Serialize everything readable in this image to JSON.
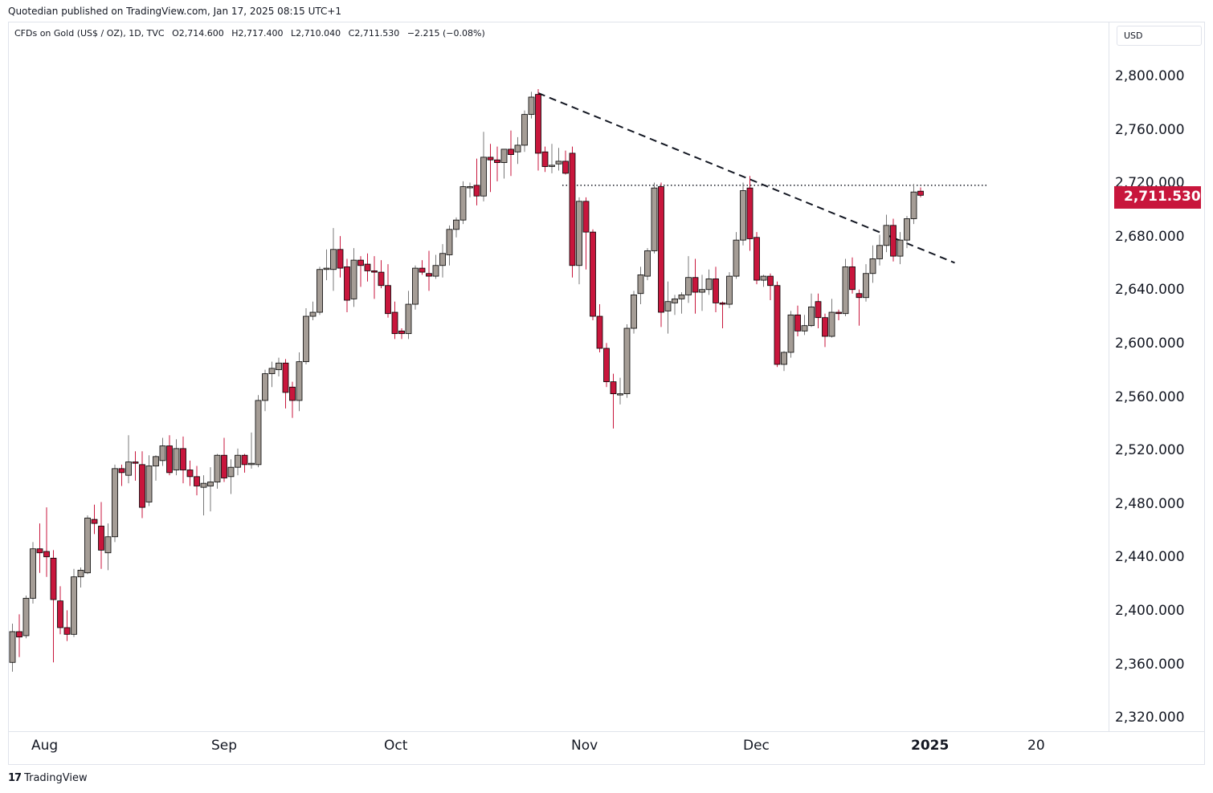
{
  "header": {
    "published": "Quotedian published on TradingView.com, Jan 17, 2025 08:15 UTC+1"
  },
  "legend": {
    "symbol": "CFDs on Gold (US$ / OZ), 1D, TVC",
    "open": "O2,714.600",
    "high": "H2,717.400",
    "low": "L2,710.040",
    "close": "C2,711.530",
    "change": "−2.215 (−0.08%)"
  },
  "currency": "USD",
  "last_price_label": "2,711.530",
  "price_axis": [
    "2,800.000",
    "2,760.000",
    "2,720.000",
    "2,680.000",
    "2,640.000",
    "2,600.000",
    "2,560.000",
    "2,520.000",
    "2,480.000",
    "2,440.000",
    "2,400.000",
    "2,360.000",
    "2,320.000"
  ],
  "time_axis": [
    {
      "label": "Aug",
      "bold": false
    },
    {
      "label": "Sep",
      "bold": false
    },
    {
      "label": "Oct",
      "bold": false
    },
    {
      "label": "Nov",
      "bold": false
    },
    {
      "label": "Dec",
      "bold": false
    },
    {
      "label": "2025",
      "bold": true
    },
    {
      "label": "20",
      "bold": false
    }
  ],
  "footer": {
    "brand": "TradingView"
  },
  "colors": {
    "up": "#a59d96",
    "down": "#c8163c",
    "outline": "#000000",
    "wick_up": "#787878",
    "wick_down": "#c8163c",
    "badge": "#c8163c"
  },
  "chart_data": {
    "type": "candlestick",
    "ylim": [
      2300,
      2830
    ],
    "grid": false,
    "y_tick_values": [
      2800,
      2760,
      2720,
      2680,
      2640,
      2600,
      2560,
      2520,
      2480,
      2440,
      2400,
      2360,
      2320
    ],
    "candles": [
      {
        "o": 2362,
        "h": 2391,
        "l": 2355,
        "c": 2385
      },
      {
        "o": 2385,
        "h": 2398,
        "l": 2366,
        "c": 2381
      },
      {
        "o": 2382,
        "h": 2412,
        "l": 2380,
        "c": 2410
      },
      {
        "o": 2410,
        "h": 2452,
        "l": 2406,
        "c": 2447
      },
      {
        "o": 2447,
        "h": 2466,
        "l": 2429,
        "c": 2444
      },
      {
        "o": 2445,
        "h": 2478,
        "l": 2426,
        "c": 2441
      },
      {
        "o": 2440,
        "h": 2446,
        "l": 2362,
        "c": 2409
      },
      {
        "o": 2408,
        "h": 2419,
        "l": 2383,
        "c": 2388
      },
      {
        "o": 2388,
        "h": 2401,
        "l": 2378,
        "c": 2383
      },
      {
        "o": 2383,
        "h": 2432,
        "l": 2381,
        "c": 2426
      },
      {
        "o": 2426,
        "h": 2433,
        "l": 2418,
        "c": 2431
      },
      {
        "o": 2429,
        "h": 2472,
        "l": 2428,
        "c": 2470
      },
      {
        "o": 2469,
        "h": 2480,
        "l": 2458,
        "c": 2466
      },
      {
        "o": 2464,
        "h": 2482,
        "l": 2432,
        "c": 2446
      },
      {
        "o": 2444,
        "h": 2466,
        "l": 2431,
        "c": 2456
      },
      {
        "o": 2456,
        "h": 2510,
        "l": 2452,
        "c": 2507
      },
      {
        "o": 2507,
        "h": 2510,
        "l": 2494,
        "c": 2504
      },
      {
        "o": 2502,
        "h": 2532,
        "l": 2496,
        "c": 2512
      },
      {
        "o": 2512,
        "h": 2520,
        "l": 2498,
        "c": 2511
      },
      {
        "o": 2510,
        "h": 2520,
        "l": 2470,
        "c": 2478
      },
      {
        "o": 2482,
        "h": 2517,
        "l": 2479,
        "c": 2509
      },
      {
        "o": 2509,
        "h": 2517,
        "l": 2498,
        "c": 2516
      },
      {
        "o": 2513,
        "h": 2530,
        "l": 2509,
        "c": 2524
      },
      {
        "o": 2524,
        "h": 2532,
        "l": 2502,
        "c": 2504
      },
      {
        "o": 2506,
        "h": 2529,
        "l": 2502,
        "c": 2522
      },
      {
        "o": 2522,
        "h": 2531,
        "l": 2496,
        "c": 2506
      },
      {
        "o": 2506,
        "h": 2513,
        "l": 2494,
        "c": 2501
      },
      {
        "o": 2501,
        "h": 2509,
        "l": 2487,
        "c": 2494
      },
      {
        "o": 2493,
        "h": 2502,
        "l": 2472,
        "c": 2496
      },
      {
        "o": 2494,
        "h": 2508,
        "l": 2475,
        "c": 2497
      },
      {
        "o": 2497,
        "h": 2518,
        "l": 2492,
        "c": 2517
      },
      {
        "o": 2517,
        "h": 2530,
        "l": 2497,
        "c": 2500
      },
      {
        "o": 2501,
        "h": 2514,
        "l": 2488,
        "c": 2508
      },
      {
        "o": 2508,
        "h": 2522,
        "l": 2502,
        "c": 2517
      },
      {
        "o": 2517,
        "h": 2518,
        "l": 2504,
        "c": 2510
      },
      {
        "o": 2510,
        "h": 2534,
        "l": 2507,
        "c": 2511
      },
      {
        "o": 2510,
        "h": 2562,
        "l": 2508,
        "c": 2558
      },
      {
        "o": 2558,
        "h": 2581,
        "l": 2550,
        "c": 2578
      },
      {
        "o": 2578,
        "h": 2587,
        "l": 2568,
        "c": 2582
      },
      {
        "o": 2581,
        "h": 2590,
        "l": 2576,
        "c": 2586
      },
      {
        "o": 2586,
        "h": 2589,
        "l": 2552,
        "c": 2564
      },
      {
        "o": 2568,
        "h": 2572,
        "l": 2545,
        "c": 2558
      },
      {
        "o": 2558,
        "h": 2594,
        "l": 2550,
        "c": 2587
      },
      {
        "o": 2587,
        "h": 2627,
        "l": 2585,
        "c": 2621
      },
      {
        "o": 2621,
        "h": 2632,
        "l": 2618,
        "c": 2624
      },
      {
        "o": 2624,
        "h": 2658,
        "l": 2622,
        "c": 2656
      },
      {
        "o": 2656,
        "h": 2671,
        "l": 2648,
        "c": 2657
      },
      {
        "o": 2656,
        "h": 2687,
        "l": 2640,
        "c": 2671
      },
      {
        "o": 2671,
        "h": 2681,
        "l": 2650,
        "c": 2657
      },
      {
        "o": 2658,
        "h": 2664,
        "l": 2624,
        "c": 2633
      },
      {
        "o": 2634,
        "h": 2672,
        "l": 2628,
        "c": 2663
      },
      {
        "o": 2663,
        "h": 2666,
        "l": 2643,
        "c": 2659
      },
      {
        "o": 2660,
        "h": 2668,
        "l": 2647,
        "c": 2655
      },
      {
        "o": 2655,
        "h": 2666,
        "l": 2634,
        "c": 2654
      },
      {
        "o": 2654,
        "h": 2663,
        "l": 2642,
        "c": 2644
      },
      {
        "o": 2644,
        "h": 2660,
        "l": 2620,
        "c": 2623
      },
      {
        "o": 2624,
        "h": 2632,
        "l": 2604,
        "c": 2608
      },
      {
        "o": 2610,
        "h": 2612,
        "l": 2604,
        "c": 2608
      },
      {
        "o": 2608,
        "h": 2640,
        "l": 2604,
        "c": 2630
      },
      {
        "o": 2630,
        "h": 2659,
        "l": 2626,
        "c": 2657
      },
      {
        "o": 2657,
        "h": 2663,
        "l": 2652,
        "c": 2654
      },
      {
        "o": 2653,
        "h": 2670,
        "l": 2640,
        "c": 2651
      },
      {
        "o": 2651,
        "h": 2667,
        "l": 2649,
        "c": 2659
      },
      {
        "o": 2659,
        "h": 2675,
        "l": 2650,
        "c": 2668
      },
      {
        "o": 2667,
        "h": 2689,
        "l": 2659,
        "c": 2686
      },
      {
        "o": 2686,
        "h": 2695,
        "l": 2680,
        "c": 2693
      },
      {
        "o": 2693,
        "h": 2722,
        "l": 2690,
        "c": 2718
      },
      {
        "o": 2718,
        "h": 2721,
        "l": 2710,
        "c": 2718
      },
      {
        "o": 2719,
        "h": 2739,
        "l": 2704,
        "c": 2711
      },
      {
        "o": 2711,
        "h": 2759,
        "l": 2707,
        "c": 2740
      },
      {
        "o": 2740,
        "h": 2750,
        "l": 2714,
        "c": 2738
      },
      {
        "o": 2738,
        "h": 2748,
        "l": 2722,
        "c": 2736
      },
      {
        "o": 2736,
        "h": 2744,
        "l": 2724,
        "c": 2746
      },
      {
        "o": 2746,
        "h": 2760,
        "l": 2726,
        "c": 2742
      },
      {
        "o": 2744,
        "h": 2755,
        "l": 2735,
        "c": 2749
      },
      {
        "o": 2749,
        "h": 2775,
        "l": 2744,
        "c": 2772
      },
      {
        "o": 2772,
        "h": 2789,
        "l": 2769,
        "c": 2785
      },
      {
        "o": 2787,
        "h": 2791,
        "l": 2730,
        "c": 2743
      },
      {
        "o": 2744,
        "h": 2748,
        "l": 2729,
        "c": 2733
      },
      {
        "o": 2734,
        "h": 2750,
        "l": 2728,
        "c": 2734
      },
      {
        "o": 2735,
        "h": 2747,
        "l": 2730,
        "c": 2737
      },
      {
        "o": 2737,
        "h": 2745,
        "l": 2727,
        "c": 2728
      },
      {
        "o": 2743,
        "h": 2748,
        "l": 2650,
        "c": 2659
      },
      {
        "o": 2659,
        "h": 2710,
        "l": 2645,
        "c": 2707
      },
      {
        "o": 2707,
        "h": 2710,
        "l": 2656,
        "c": 2684
      },
      {
        "o": 2684,
        "h": 2686,
        "l": 2618,
        "c": 2621
      },
      {
        "o": 2621,
        "h": 2630,
        "l": 2594,
        "c": 2597
      },
      {
        "o": 2597,
        "h": 2601,
        "l": 2568,
        "c": 2572
      },
      {
        "o": 2572,
        "h": 2578,
        "l": 2537,
        "c": 2563
      },
      {
        "o": 2563,
        "h": 2575,
        "l": 2555,
        "c": 2563
      },
      {
        "o": 2563,
        "h": 2615,
        "l": 2560,
        "c": 2612
      },
      {
        "o": 2612,
        "h": 2640,
        "l": 2608,
        "c": 2637
      },
      {
        "o": 2638,
        "h": 2658,
        "l": 2630,
        "c": 2652
      },
      {
        "o": 2651,
        "h": 2672,
        "l": 2648,
        "c": 2670
      },
      {
        "o": 2670,
        "h": 2721,
        "l": 2668,
        "c": 2717
      },
      {
        "o": 2718,
        "h": 2721,
        "l": 2613,
        "c": 2624
      },
      {
        "o": 2625,
        "h": 2647,
        "l": 2608,
        "c": 2632
      },
      {
        "o": 2631,
        "h": 2637,
        "l": 2622,
        "c": 2634
      },
      {
        "o": 2634,
        "h": 2639,
        "l": 2623,
        "c": 2637
      },
      {
        "o": 2637,
        "h": 2666,
        "l": 2631,
        "c": 2650
      },
      {
        "o": 2650,
        "h": 2664,
        "l": 2623,
        "c": 2639
      },
      {
        "o": 2639,
        "h": 2652,
        "l": 2625,
        "c": 2641
      },
      {
        "o": 2641,
        "h": 2656,
        "l": 2637,
        "c": 2649
      },
      {
        "o": 2649,
        "h": 2658,
        "l": 2624,
        "c": 2631
      },
      {
        "o": 2631,
        "h": 2632,
        "l": 2612,
        "c": 2630
      },
      {
        "o": 2630,
        "h": 2654,
        "l": 2627,
        "c": 2651
      },
      {
        "o": 2651,
        "h": 2684,
        "l": 2649,
        "c": 2678
      },
      {
        "o": 2678,
        "h": 2721,
        "l": 2674,
        "c": 2715
      },
      {
        "o": 2717,
        "h": 2726,
        "l": 2670,
        "c": 2679
      },
      {
        "o": 2680,
        "h": 2684,
        "l": 2645,
        "c": 2648
      },
      {
        "o": 2648,
        "h": 2652,
        "l": 2643,
        "c": 2651
      },
      {
        "o": 2651,
        "h": 2653,
        "l": 2633,
        "c": 2644
      },
      {
        "o": 2644,
        "h": 2647,
        "l": 2583,
        "c": 2585
      },
      {
        "o": 2585,
        "h": 2595,
        "l": 2580,
        "c": 2594
      },
      {
        "o": 2594,
        "h": 2625,
        "l": 2590,
        "c": 2622
      },
      {
        "o": 2622,
        "h": 2629,
        "l": 2606,
        "c": 2610
      },
      {
        "o": 2610,
        "h": 2622,
        "l": 2607,
        "c": 2614
      },
      {
        "o": 2614,
        "h": 2638,
        "l": 2613,
        "c": 2628
      },
      {
        "o": 2632,
        "h": 2638,
        "l": 2612,
        "c": 2620
      },
      {
        "o": 2620,
        "h": 2623,
        "l": 2598,
        "c": 2606
      },
      {
        "o": 2606,
        "h": 2634,
        "l": 2605,
        "c": 2624
      },
      {
        "o": 2624,
        "h": 2626,
        "l": 2618,
        "c": 2623
      },
      {
        "o": 2623,
        "h": 2664,
        "l": 2621,
        "c": 2658
      },
      {
        "o": 2658,
        "h": 2665,
        "l": 2638,
        "c": 2641
      },
      {
        "o": 2638,
        "h": 2641,
        "l": 2614,
        "c": 2635
      },
      {
        "o": 2635,
        "h": 2660,
        "l": 2632,
        "c": 2653
      },
      {
        "o": 2653,
        "h": 2674,
        "l": 2646,
        "c": 2664
      },
      {
        "o": 2664,
        "h": 2682,
        "l": 2659,
        "c": 2674
      },
      {
        "o": 2674,
        "h": 2697,
        "l": 2669,
        "c": 2689
      },
      {
        "o": 2689,
        "h": 2694,
        "l": 2662,
        "c": 2666
      },
      {
        "o": 2666,
        "h": 2684,
        "l": 2660,
        "c": 2678
      },
      {
        "o": 2678,
        "h": 2696,
        "l": 2672,
        "c": 2694
      },
      {
        "o": 2694,
        "h": 2720,
        "l": 2690,
        "c": 2714
      },
      {
        "o": 2714.6,
        "h": 2717.4,
        "l": 2710.04,
        "c": 2711.53
      }
    ],
    "annotations": [
      {
        "type": "dotted_horizontal",
        "value": 2719,
        "from_candle": 81,
        "to_candle": 143
      },
      {
        "type": "dashed_trendline",
        "from": {
          "candle": 77,
          "value": 2788
        },
        "to": {
          "candle": 138,
          "value": 2661
        }
      }
    ]
  }
}
